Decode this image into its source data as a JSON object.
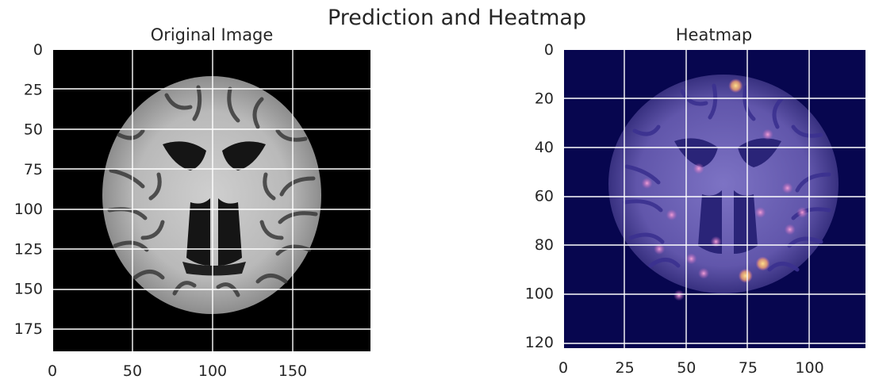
{
  "figure": {
    "suptitle": "Prediction and Heatmap"
  },
  "chart_data": [
    {
      "type": "heatmap",
      "title": "Original Image",
      "xlabel": "",
      "ylabel": "",
      "xlim": [
        0,
        199
      ],
      "ylim": [
        190,
        0
      ],
      "xticks": [
        0,
        50,
        100,
        150
      ],
      "yticks": [
        0,
        25,
        50,
        75,
        100,
        125,
        150,
        175
      ],
      "grid": true,
      "content": "grayscale axial brain MRI slice",
      "colors": {
        "background": "#000000",
        "tissue": "#bdbdbd",
        "grid": "#ffffff"
      }
    },
    {
      "type": "heatmap",
      "title": "Heatmap",
      "xlabel": "",
      "ylabel": "",
      "xlim": [
        0,
        123
      ],
      "ylim": [
        123,
        0
      ],
      "xticks": [
        0,
        25,
        50,
        75,
        100
      ],
      "yticks": [
        0,
        20,
        40,
        60,
        80,
        100,
        120
      ],
      "grid": true,
      "content": "brain MRI overlaid with magma-style activation heatmap",
      "colors": {
        "background": "#07064f",
        "overlay": "#6f63b8",
        "hotspot": "#e985c8",
        "peak": "#f7c56a",
        "grid": "#ffffff"
      },
      "hotspots": [
        {
          "x": 52,
          "y": 86
        },
        {
          "x": 57,
          "y": 92
        },
        {
          "x": 74,
          "y": 93
        },
        {
          "x": 70,
          "y": 15
        },
        {
          "x": 81,
          "y": 88
        },
        {
          "x": 47,
          "y": 101
        },
        {
          "x": 55,
          "y": 49
        },
        {
          "x": 34,
          "y": 55
        },
        {
          "x": 91,
          "y": 57
        },
        {
          "x": 44,
          "y": 68
        },
        {
          "x": 80,
          "y": 67
        },
        {
          "x": 97,
          "y": 67
        },
        {
          "x": 92,
          "y": 74
        },
        {
          "x": 83,
          "y": 35
        },
        {
          "x": 39,
          "y": 82
        },
        {
          "x": 62,
          "y": 79
        }
      ]
    }
  ]
}
